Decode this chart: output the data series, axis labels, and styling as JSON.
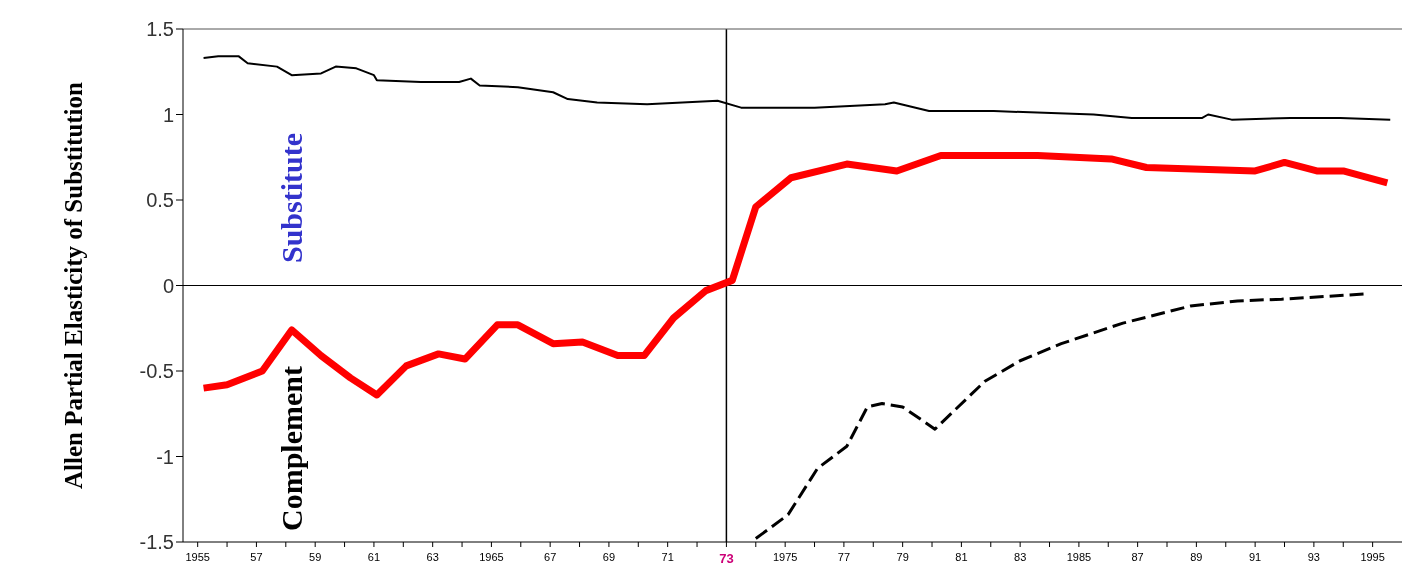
{
  "chart_data": {
    "type": "line",
    "ylabel": "Allen Partial Elasticity of Substitution",
    "xlim": [
      1954.5,
      1996
    ],
    "ylim": [
      -1.5,
      1.5
    ],
    "yticks": [
      -1.5,
      -1,
      -0.5,
      0,
      0.5,
      1,
      1.5
    ],
    "xticks": [
      {
        "value": 1955,
        "label": "1955"
      },
      {
        "value": 1956,
        "label": null
      },
      {
        "value": 1957,
        "label": "57"
      },
      {
        "value": 1958,
        "label": null
      },
      {
        "value": 1959,
        "label": "59"
      },
      {
        "value": 1960,
        "label": null
      },
      {
        "value": 1961,
        "label": "61"
      },
      {
        "value": 1962,
        "label": null
      },
      {
        "value": 1963,
        "label": "63"
      },
      {
        "value": 1964,
        "label": null
      },
      {
        "value": 1965,
        "label": "1965"
      },
      {
        "value": 1966,
        "label": null
      },
      {
        "value": 1967,
        "label": "67"
      },
      {
        "value": 1968,
        "label": null
      },
      {
        "value": 1969,
        "label": "69"
      },
      {
        "value": 1970,
        "label": null
      },
      {
        "value": 1971,
        "label": "71"
      },
      {
        "value": 1972,
        "label": null
      },
      {
        "value": 1973,
        "label": "73"
      },
      {
        "value": 1974,
        "label": null
      },
      {
        "value": 1975,
        "label": "1975"
      },
      {
        "value": 1976,
        "label": null
      },
      {
        "value": 1977,
        "label": "77"
      },
      {
        "value": 1978,
        "label": null
      },
      {
        "value": 1979,
        "label": "79"
      },
      {
        "value": 1980,
        "label": null
      },
      {
        "value": 1981,
        "label": "81"
      },
      {
        "value": 1982,
        "label": null
      },
      {
        "value": 1983,
        "label": "83"
      },
      {
        "value": 1984,
        "label": null
      },
      {
        "value": 1985,
        "label": "1985"
      },
      {
        "value": 1986,
        "label": null
      },
      {
        "value": 1987,
        "label": "87"
      },
      {
        "value": 1988,
        "label": null
      },
      {
        "value": 1989,
        "label": "89"
      },
      {
        "value": 1990,
        "label": null
      },
      {
        "value": 1991,
        "label": "91"
      },
      {
        "value": 1992,
        "label": null
      },
      {
        "value": 1993,
        "label": "93"
      },
      {
        "value": 1994,
        "label": null
      },
      {
        "value": 1995,
        "label": "1995"
      }
    ],
    "grid": false,
    "series": [
      {
        "color": "#000000",
        "line_style": "solid",
        "x": [
          1955.2,
          1955.7,
          1956.4,
          1956.7,
          1957.7,
          1958.2,
          1959.2,
          1959.7,
          1960.4,
          1961.0,
          1961.1,
          1962.6,
          1963.9,
          1964.3,
          1964.6,
          1965.9,
          1967.1,
          1967.6,
          1968.6,
          1970.3,
          1972.7,
          1973.5,
          1976.0,
          1978.4,
          1978.7,
          1979.9,
          1982.1,
          1985.5,
          1986.8,
          1989.2,
          1989.4,
          1990.2,
          1992.2,
          1993.9,
          1995.6
        ],
        "values": [
          1.33,
          1.34,
          1.34,
          1.3,
          1.28,
          1.23,
          1.24,
          1.28,
          1.27,
          1.23,
          1.2,
          1.19,
          1.19,
          1.21,
          1.17,
          1.16,
          1.13,
          1.09,
          1.07,
          1.06,
          1.08,
          1.04,
          1.04,
          1.06,
          1.07,
          1.02,
          1.02,
          1.0,
          0.98,
          0.98,
          1.0,
          0.97,
          0.98,
          0.98,
          0.97
        ]
      },
      {
        "color": "#ff0000",
        "line_style": "solid",
        "x": [
          1955.2,
          1956.0,
          1957.2,
          1958.2,
          1959.2,
          1960.2,
          1961.1,
          1962.1,
          1963.2,
          1964.1,
          1965.2,
          1965.9,
          1967.1,
          1968.1,
          1969.3,
          1970.2,
          1971.2,
          1972.3,
          1973.2,
          1974.0,
          1975.2,
          1977.1,
          1978.8,
          1980.3,
          1983.6,
          1986.1,
          1987.3,
          1991.0,
          1992.0,
          1993.1,
          1994.0,
          1995.5
        ],
        "values": [
          -0.6,
          -0.58,
          -0.5,
          -0.26,
          -0.41,
          -0.54,
          -0.64,
          -0.47,
          -0.4,
          -0.43,
          -0.23,
          -0.23,
          -0.34,
          -0.33,
          -0.41,
          -0.41,
          -0.19,
          -0.03,
          0.03,
          0.46,
          0.63,
          0.71,
          0.67,
          0.76,
          0.76,
          0.74,
          0.69,
          0.67,
          0.72,
          0.67,
          0.67,
          0.6
        ]
      },
      {
        "color": "#000000",
        "line_style": "dashed",
        "x": [
          1974.0,
          1975.1,
          1976.1,
          1977.1,
          1977.8,
          1978.3,
          1979.0,
          1980.1,
          1981.8,
          1983.0,
          1984.4,
          1986.5,
          1988.8,
          1990.4,
          1991.9,
          1994.7
        ],
        "values": [
          -1.48,
          -1.34,
          -1.07,
          -0.94,
          -0.71,
          -0.69,
          -0.71,
          -0.84,
          -0.56,
          -0.44,
          -0.34,
          -0.22,
          -0.12,
          -0.09,
          -0.08,
          -0.05
        ]
      }
    ],
    "ref_lines": [
      {
        "axis": "y",
        "value": 0,
        "label": null,
        "color": "#000000"
      },
      {
        "axis": "x",
        "value": 1973,
        "label": null,
        "color": "#000000"
      }
    ],
    "annotations": [
      "Substitute",
      "Complement"
    ]
  }
}
